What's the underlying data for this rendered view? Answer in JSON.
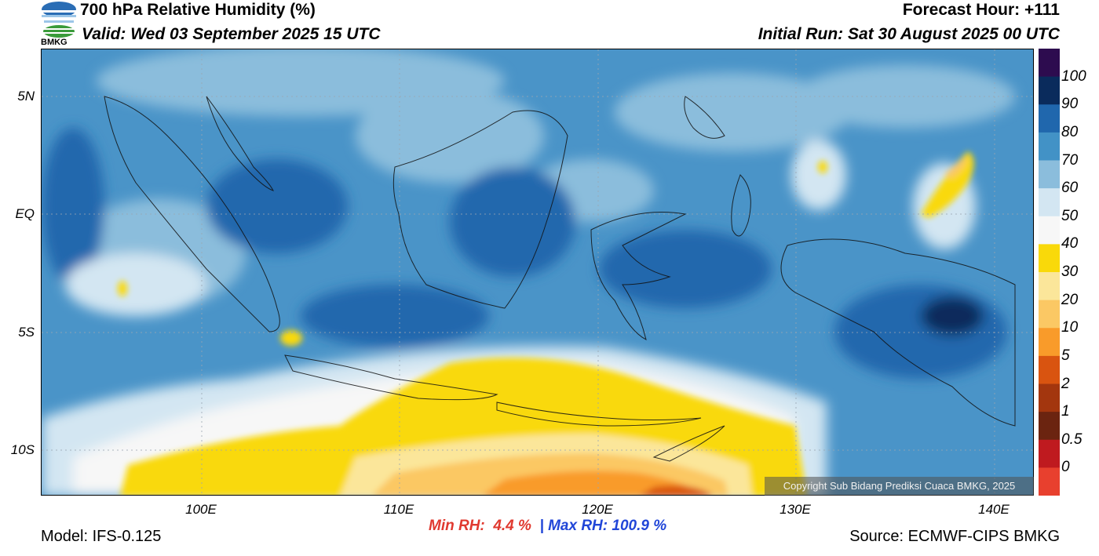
{
  "header": {
    "title": "700 hPa Relative Humidity (%)",
    "valid": "Valid: Wed 03 September 2025 15 UTC",
    "forecast_hour": "Forecast Hour: +111",
    "initial_run": "Initial Run: Sat 30 August 2025 00 UTC"
  },
  "logo": {
    "text": "BMKG",
    "icon": "bmkg-logo-icon"
  },
  "map": {
    "lat_labels": [
      "5N",
      "EQ",
      "5S",
      "10S"
    ],
    "lon_labels": [
      "100E",
      "110E",
      "120E",
      "130E",
      "140E"
    ],
    "copyright": "Copyright Sub Bidang Prediksi Cuaca BMKG, 2025"
  },
  "colorbar": {
    "labels": [
      "100",
      "90",
      "80",
      "70",
      "60",
      "50",
      "40",
      "30",
      "20",
      "10",
      "5",
      "2",
      "1",
      "0.5",
      "0"
    ],
    "colors": [
      "#2d0c4f",
      "#0a2b5c",
      "#2067ad",
      "#4292c6",
      "#8bbddc",
      "#d3e6f2",
      "#f7f7f7",
      "#f9d90a",
      "#fbe69a",
      "#fbc864",
      "#f99b2a",
      "#d95410",
      "#a3360e",
      "#6b2410",
      "#bf1a1f",
      "#e8402e"
    ]
  },
  "stats": {
    "min_label": "Min RH:",
    "min_value": "4.4 %",
    "separator": "|",
    "max_label": "Max RH:",
    "max_value": "100.9 %"
  },
  "footer": {
    "model": "Model: IFS-0.125",
    "source": "Source: ECMWF-CIPS BMKG"
  }
}
